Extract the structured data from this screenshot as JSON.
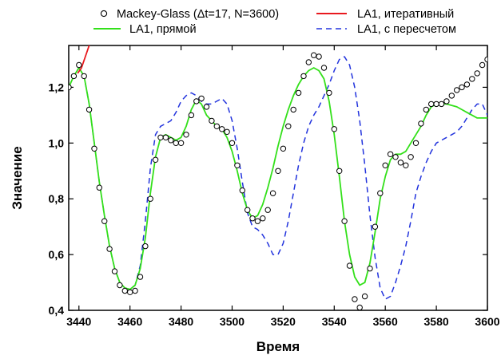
{
  "chart_data": {
    "type": "line",
    "xlabel": "Время",
    "ylabel": "Значение",
    "xlim": [
      3436,
      3600
    ],
    "ylim": [
      0.4,
      1.35
    ],
    "x_ticks": [
      3440,
      3460,
      3480,
      3500,
      3520,
      3540,
      3560,
      3580,
      3600
    ],
    "y_ticks": [
      0.4,
      0.6,
      0.8,
      1.0,
      1.2
    ],
    "x_tick_labels": [
      "3440",
      "3460",
      "3480",
      "3500",
      "3520",
      "3540",
      "3560",
      "3580",
      "3600"
    ],
    "y_tick_labels": [
      "0,4",
      "0,6",
      "0,8",
      "1,0",
      "1,2"
    ],
    "grid": false,
    "legend_position": "top",
    "series": [
      {
        "name": "Mackey-Glass (Δt=17, N=3600)",
        "style": "markers",
        "color": "#000000",
        "x": [
          3436,
          3438,
          3440,
          3442,
          3444,
          3446,
          3448,
          3450,
          3452,
          3454,
          3456,
          3458,
          3460,
          3462,
          3464,
          3466,
          3468,
          3470,
          3472,
          3474,
          3476,
          3478,
          3480,
          3482,
          3484,
          3486,
          3488,
          3490,
          3492,
          3494,
          3496,
          3498,
          3500,
          3502,
          3504,
          3506,
          3508,
          3510,
          3512,
          3514,
          3516,
          3518,
          3520,
          3522,
          3524,
          3526,
          3528,
          3530,
          3532,
          3534,
          3536,
          3538,
          3540,
          3542,
          3544,
          3546,
          3548,
          3550,
          3552,
          3554,
          3556,
          3558,
          3560,
          3562,
          3564,
          3566,
          3568,
          3570,
          3572,
          3574,
          3576,
          3578,
          3580,
          3582,
          3584,
          3586,
          3588,
          3590,
          3592,
          3594,
          3596,
          3598,
          3600
        ],
        "y": [
          1.2,
          1.24,
          1.28,
          1.24,
          1.12,
          0.98,
          0.84,
          0.72,
          0.62,
          0.54,
          0.49,
          0.47,
          0.465,
          0.47,
          0.52,
          0.63,
          0.8,
          0.94,
          1.02,
          1.02,
          1.01,
          1.0,
          1.0,
          1.03,
          1.1,
          1.15,
          1.16,
          1.13,
          1.08,
          1.06,
          1.05,
          1.04,
          1.0,
          0.92,
          0.83,
          0.76,
          0.73,
          0.72,
          0.73,
          0.76,
          0.82,
          0.9,
          0.98,
          1.06,
          1.12,
          1.18,
          1.24,
          1.29,
          1.315,
          1.31,
          1.27,
          1.18,
          1.05,
          0.9,
          0.72,
          0.56,
          0.44,
          0.41,
          0.45,
          0.55,
          0.7,
          0.82,
          0.92,
          0.96,
          0.95,
          0.93,
          0.92,
          0.95,
          1.0,
          1.07,
          1.12,
          1.14,
          1.14,
          1.14,
          1.15,
          1.17,
          1.19,
          1.2,
          1.21,
          1.23,
          1.25,
          1.28,
          1.3
        ]
      },
      {
        "name": "LA1, итеративный",
        "style": "line",
        "color": "#e8191e",
        "x": [
          3439.5,
          3441,
          3442.5,
          3444,
          3445
        ],
        "y": [
          1.25,
          1.27,
          1.31,
          1.35,
          1.38
        ]
      },
      {
        "name": "LA1, прямой",
        "style": "line",
        "color": "#33e01a",
        "x": [
          3436,
          3438,
          3440,
          3442,
          3444,
          3446,
          3448,
          3450,
          3452,
          3454,
          3456,
          3458,
          3460,
          3462,
          3464,
          3466,
          3468,
          3470,
          3472,
          3474,
          3476,
          3478,
          3480,
          3482,
          3484,
          3486,
          3488,
          3490,
          3492,
          3494,
          3496,
          3498,
          3500,
          3502,
          3504,
          3506,
          3508,
          3510,
          3512,
          3514,
          3516,
          3518,
          3520,
          3522,
          3524,
          3526,
          3528,
          3530,
          3532,
          3534,
          3536,
          3538,
          3540,
          3542,
          3544,
          3546,
          3548,
          3550,
          3552,
          3554,
          3556,
          3558,
          3560,
          3562,
          3564,
          3566,
          3568,
          3570,
          3572,
          3574,
          3576,
          3578,
          3580,
          3582,
          3584,
          3586,
          3588,
          3590,
          3592,
          3594,
          3596,
          3598,
          3600
        ],
        "y": [
          1.2,
          1.24,
          1.27,
          1.24,
          1.14,
          1.0,
          0.86,
          0.74,
          0.63,
          0.55,
          0.5,
          0.48,
          0.475,
          0.49,
          0.55,
          0.66,
          0.82,
          0.95,
          1.02,
          1.03,
          1.02,
          1.01,
          1.02,
          1.06,
          1.12,
          1.155,
          1.14,
          1.1,
          1.08,
          1.06,
          1.05,
          1.02,
          0.97,
          0.9,
          0.82,
          0.76,
          0.73,
          0.74,
          0.78,
          0.84,
          0.91,
          0.99,
          1.06,
          1.12,
          1.17,
          1.21,
          1.24,
          1.26,
          1.27,
          1.26,
          1.23,
          1.15,
          1.03,
          0.88,
          0.72,
          0.6,
          0.52,
          0.49,
          0.5,
          0.57,
          0.68,
          0.8,
          0.88,
          0.94,
          0.96,
          0.96,
          0.97,
          1.0,
          1.03,
          1.06,
          1.1,
          1.13,
          1.14,
          1.14,
          1.14,
          1.135,
          1.13,
          1.12,
          1.11,
          1.1,
          1.09,
          1.09,
          1.09
        ]
      },
      {
        "name": "LA1, с пересчетом",
        "style": "dashed",
        "color": "#2233dd",
        "x": [
          3436,
          3438,
          3440,
          3442,
          3444,
          3446,
          3448,
          3450,
          3452,
          3454,
          3456,
          3458,
          3460,
          3462,
          3464,
          3466,
          3468,
          3470,
          3472,
          3474,
          3476,
          3478,
          3480,
          3482,
          3484,
          3486,
          3488,
          3490,
          3492,
          3494,
          3496,
          3498,
          3500,
          3502,
          3504,
          3506,
          3508,
          3510,
          3512,
          3514,
          3516,
          3518,
          3520,
          3522,
          3524,
          3526,
          3528,
          3530,
          3532,
          3534,
          3536,
          3538,
          3540,
          3542,
          3544,
          3546,
          3548,
          3550,
          3552,
          3554,
          3556,
          3558,
          3560,
          3562,
          3564,
          3566,
          3568,
          3570,
          3572,
          3574,
          3576,
          3578,
          3580,
          3582,
          3584,
          3586,
          3588,
          3590,
          3592,
          3594,
          3596,
          3598,
          3600
        ],
        "y": [
          1.2,
          1.24,
          1.27,
          1.24,
          1.14,
          1.0,
          0.86,
          0.74,
          0.63,
          0.55,
          0.5,
          0.48,
          0.475,
          0.49,
          0.56,
          0.72,
          0.91,
          1.03,
          1.06,
          1.07,
          1.08,
          1.11,
          1.15,
          1.17,
          1.18,
          1.17,
          1.15,
          1.14,
          1.14,
          1.15,
          1.16,
          1.14,
          1.08,
          0.98,
          0.86,
          0.75,
          0.7,
          0.69,
          0.67,
          0.64,
          0.6,
          0.6,
          0.64,
          0.72,
          0.82,
          0.92,
          1.0,
          1.06,
          1.1,
          1.13,
          1.17,
          1.21,
          1.26,
          1.3,
          1.31,
          1.28,
          1.2,
          1.08,
          0.92,
          0.74,
          0.59,
          0.48,
          0.44,
          0.45,
          0.5,
          0.56,
          0.63,
          0.72,
          0.82,
          0.88,
          0.93,
          0.97,
          1.0,
          1.01,
          1.02,
          1.03,
          1.04,
          1.06,
          1.09,
          1.12,
          1.14,
          1.14,
          1.1
        ]
      }
    ]
  }
}
